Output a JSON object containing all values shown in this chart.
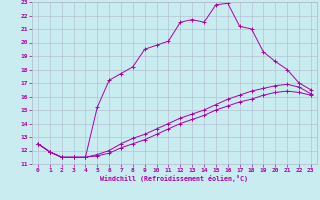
{
  "xlabel": "Windchill (Refroidissement éolien,°C)",
  "xlim": [
    -0.5,
    23.5
  ],
  "ylim": [
    11,
    23
  ],
  "xticks": [
    0,
    1,
    2,
    3,
    4,
    5,
    6,
    7,
    8,
    9,
    10,
    11,
    12,
    13,
    14,
    15,
    16,
    17,
    18,
    19,
    20,
    21,
    22,
    23
  ],
  "yticks": [
    11,
    12,
    13,
    14,
    15,
    16,
    17,
    18,
    19,
    20,
    21,
    22,
    23
  ],
  "bg_color": "#c8ecf0",
  "grid_color": "#b0b8cc",
  "line_color": "#aa00aa",
  "line1_x": [
    0,
    1,
    2,
    3,
    4,
    5,
    6,
    7,
    8,
    9,
    10,
    11,
    12,
    13,
    14,
    15,
    16,
    17,
    18,
    19,
    20,
    21,
    22,
    23
  ],
  "line1_y": [
    12.5,
    11.9,
    11.5,
    11.5,
    11.5,
    15.2,
    17.2,
    17.7,
    18.2,
    19.5,
    19.8,
    20.1,
    21.5,
    21.7,
    21.5,
    22.8,
    22.9,
    21.2,
    21.0,
    19.3,
    18.6,
    18.0,
    17.0,
    16.5
  ],
  "line2_x": [
    0,
    1,
    2,
    3,
    4,
    5,
    6,
    7,
    8,
    9,
    10,
    11,
    12,
    13,
    14,
    15,
    16,
    17,
    18,
    19,
    20,
    21,
    22,
    23
  ],
  "line2_y": [
    12.5,
    11.9,
    11.5,
    11.5,
    11.5,
    11.7,
    12.0,
    12.5,
    12.9,
    13.2,
    13.6,
    14.0,
    14.4,
    14.7,
    15.0,
    15.4,
    15.8,
    16.1,
    16.4,
    16.6,
    16.8,
    16.9,
    16.7,
    16.2
  ],
  "line3_x": [
    0,
    1,
    2,
    3,
    4,
    5,
    6,
    7,
    8,
    9,
    10,
    11,
    12,
    13,
    14,
    15,
    16,
    17,
    18,
    19,
    20,
    21,
    22,
    23
  ],
  "line3_y": [
    12.5,
    11.9,
    11.5,
    11.5,
    11.5,
    11.6,
    11.8,
    12.2,
    12.5,
    12.8,
    13.2,
    13.6,
    14.0,
    14.3,
    14.6,
    15.0,
    15.3,
    15.6,
    15.8,
    16.1,
    16.3,
    16.4,
    16.3,
    16.1
  ]
}
